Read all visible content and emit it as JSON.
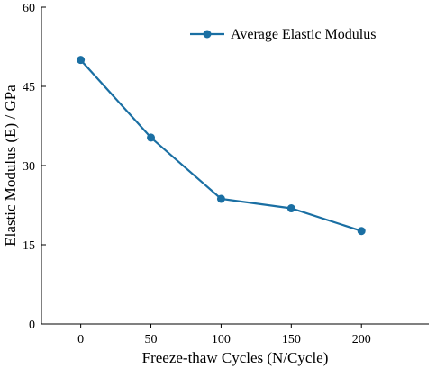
{
  "chart_data": {
    "type": "line",
    "xlabel": "Freeze-thaw Cycles (N/Cycle)",
    "ylabel": "Elastic Modulus (E) / GPa",
    "xlim": [
      -28,
      248
    ],
    "ylim": [
      0,
      60
    ],
    "x_ticks": [
      0,
      50,
      100,
      150,
      200
    ],
    "y_ticks": [
      0,
      15,
      30,
      45,
      60
    ],
    "legend_position": "top-right",
    "grid": false,
    "series": [
      {
        "name": "Average Elastic Modulus",
        "color": "#1a6fa3",
        "marker": "circle",
        "x": [
          0,
          50,
          100,
          150,
          200
        ],
        "y": [
          50.0,
          35.3,
          23.7,
          21.9,
          17.6
        ]
      }
    ]
  }
}
